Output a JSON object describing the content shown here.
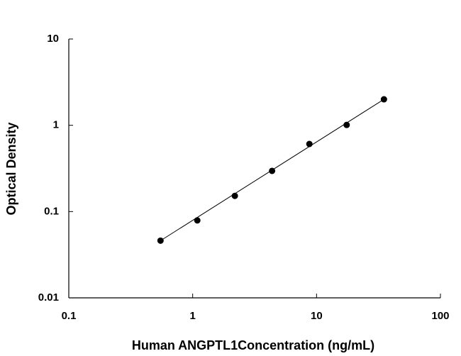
{
  "chart_data": {
    "type": "scatter",
    "log_x": true,
    "log_y": true,
    "xlabel": "Human ANGPTL1Concentration (ng/mL)",
    "ylabel": "Optical Density",
    "x": [
      0.55,
      1.09,
      2.19,
      4.375,
      8.75,
      17.5,
      35
    ],
    "values": [
      0.046,
      0.079,
      0.152,
      0.296,
      0.607,
      1.01,
      2.0
    ],
    "fit": {
      "x": [
        0.55,
        35
      ],
      "values": [
        0.046,
        2.0
      ]
    },
    "color": "#000000",
    "xlim": [
      0.1,
      100
    ],
    "xticks": [
      0.1,
      1,
      10,
      100
    ],
    "ylim": [
      0.01,
      10
    ],
    "yticks": [
      0.01,
      0.1,
      1,
      10
    ]
  }
}
